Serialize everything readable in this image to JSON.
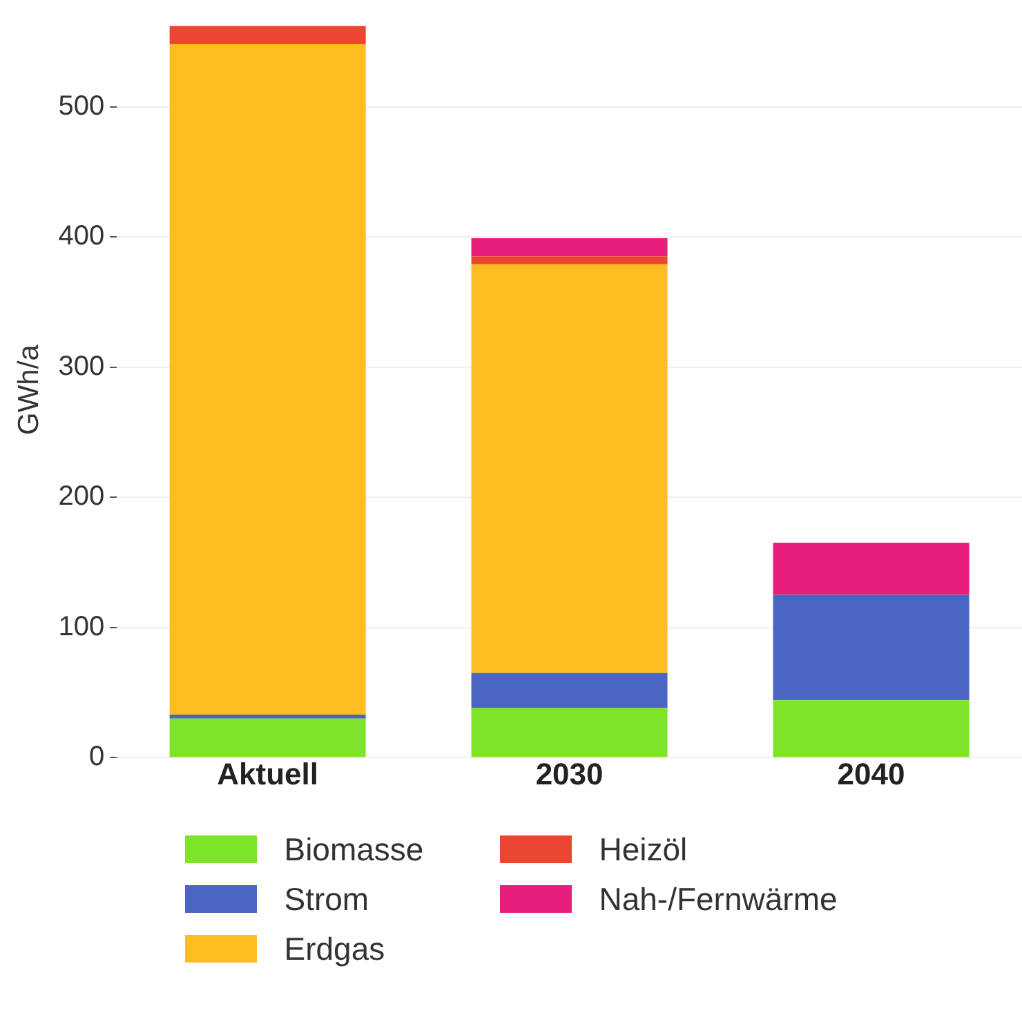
{
  "chart_data": {
    "type": "bar",
    "stacked": true,
    "ylabel": "GWh/a",
    "categories": [
      "Aktuell",
      "2030",
      "2040"
    ],
    "series": [
      {
        "name": "Biomasse",
        "color": "#7ee42a",
        "values": [
          30,
          38,
          44
        ]
      },
      {
        "name": "Strom",
        "color": "#4a65c2",
        "values": [
          3,
          27,
          81
        ]
      },
      {
        "name": "Erdgas",
        "color": "#fdbd20",
        "values": [
          515,
          314,
          0
        ]
      },
      {
        "name": "Heizöl",
        "color": "#ec4633",
        "values": [
          14,
          6,
          0
        ]
      },
      {
        "name": "Nah-/Fernwärme",
        "color": "#e61f7d",
        "values": [
          0,
          14,
          40
        ]
      }
    ],
    "ylim": [
      0,
      565
    ],
    "yticks": [
      0,
      100,
      200,
      300,
      400,
      500
    ],
    "grid": "y",
    "legend": "bottom"
  }
}
